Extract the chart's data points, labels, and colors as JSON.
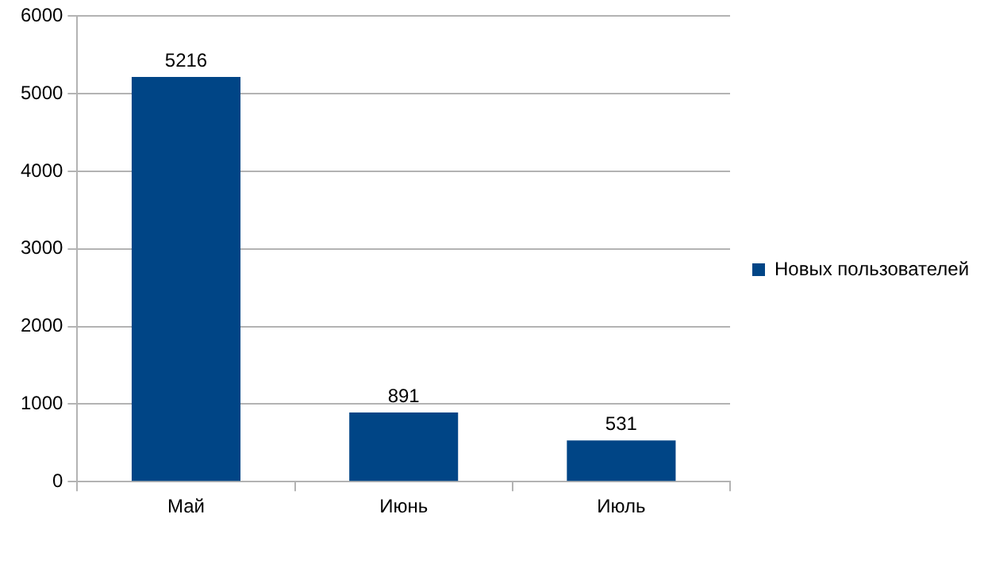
{
  "chart_data": {
    "type": "bar",
    "categories": [
      "Май",
      "Июнь",
      "Июль"
    ],
    "series": [
      {
        "name": "Новых пользователей",
        "color": "#004586",
        "values": [
          5216,
          891,
          531
        ]
      }
    ],
    "ylim": [
      0,
      6000
    ],
    "yticks": [
      0,
      1000,
      2000,
      3000,
      4000,
      5000,
      6000
    ],
    "grid": "y",
    "legend": "right",
    "data_labels": true
  }
}
